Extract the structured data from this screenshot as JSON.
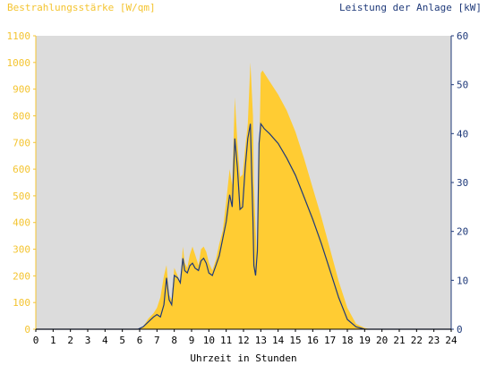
{
  "chart_data": {
    "type": "area",
    "x_label": "Uhrzeit in Stunden",
    "left_axis": {
      "label": "Bestrahlungsstärke [W/qm]",
      "range": [
        0,
        1100
      ],
      "ticks": [
        0,
        100,
        200,
        300,
        400,
        500,
        600,
        700,
        800,
        900,
        1000,
        1100
      ],
      "color": "#f4c430"
    },
    "right_axis": {
      "label": "Leistung der Anlage [kW]",
      "range": [
        0,
        60
      ],
      "ticks": [
        0,
        10,
        20,
        30,
        40,
        50,
        60
      ],
      "color": "#1f3a7a"
    },
    "x_range": [
      0,
      24
    ],
    "x_ticks": [
      0,
      1,
      2,
      3,
      4,
      5,
      6,
      7,
      8,
      9,
      10,
      11,
      12,
      13,
      14,
      15,
      16,
      17,
      18,
      19,
      20,
      21,
      22,
      23,
      24
    ],
    "plot_background": "#dcdcdc",
    "series": [
      {
        "name": "Bestrahlungsstärke",
        "axis": "left",
        "style": "filled-area",
        "color": "#ffcc33",
        "x": [
          0,
          5.9,
          6.2,
          6.5,
          6.8,
          7.0,
          7.2,
          7.4,
          7.55,
          7.7,
          7.85,
          8.0,
          8.2,
          8.35,
          8.5,
          8.6,
          8.75,
          8.9,
          9.05,
          9.2,
          9.4,
          9.55,
          9.7,
          9.85,
          10.0,
          10.2,
          10.4,
          10.6,
          10.8,
          11.0,
          11.2,
          11.35,
          11.5,
          11.65,
          11.8,
          11.95,
          12.1,
          12.25,
          12.4,
          12.55,
          12.6,
          12.7,
          12.8,
          12.9,
          13.0,
          13.1,
          13.2,
          13.5,
          14.0,
          14.5,
          15.0,
          15.5,
          16.0,
          16.5,
          17.0,
          17.5,
          18.0,
          18.5,
          19.0,
          19.3,
          19.6,
          20.0,
          24
        ],
        "y": [
          0,
          0,
          10,
          40,
          60,
          80,
          120,
          200,
          240,
          130,
          110,
          230,
          200,
          170,
          310,
          250,
          230,
          280,
          310,
          280,
          240,
          300,
          310,
          290,
          250,
          220,
          260,
          320,
          370,
          480,
          600,
          540,
          870,
          700,
          570,
          580,
          680,
          770,
          1000,
          800,
          550,
          380,
          240,
          620,
          960,
          970,
          960,
          930,
          880,
          820,
          740,
          640,
          530,
          420,
          300,
          180,
          80,
          20,
          5,
          0,
          0,
          0,
          0
        ]
      },
      {
        "name": "Leistung der Anlage",
        "axis": "right",
        "style": "line",
        "color": "#1f3a7a",
        "x": [
          0,
          5.9,
          6.2,
          6.5,
          6.8,
          7.0,
          7.2,
          7.4,
          7.55,
          7.7,
          7.85,
          8.0,
          8.2,
          8.35,
          8.5,
          8.6,
          8.75,
          8.9,
          9.05,
          9.2,
          9.4,
          9.55,
          9.7,
          9.85,
          10.0,
          10.2,
          10.4,
          10.6,
          10.8,
          11.0,
          11.2,
          11.35,
          11.5,
          11.65,
          11.8,
          11.95,
          12.1,
          12.25,
          12.4,
          12.55,
          12.6,
          12.7,
          12.8,
          12.9,
          13.0,
          13.1,
          13.2,
          13.5,
          14.0,
          14.5,
          15.0,
          15.5,
          16.0,
          16.5,
          17.0,
          17.5,
          18.0,
          18.5,
          19.0,
          19.3,
          19.6,
          20.0,
          24
        ],
        "y": [
          0,
          0,
          0.5,
          1.5,
          2.5,
          3,
          2.5,
          5,
          10.5,
          6,
          5,
          11,
          10.5,
          9.5,
          14.5,
          12,
          11.5,
          13,
          13.5,
          12.5,
          12,
          14,
          14.5,
          13.5,
          11.5,
          11,
          13,
          15,
          18.5,
          22,
          27.5,
          25,
          39,
          33,
          24.5,
          25,
          33,
          39,
          42,
          22,
          13,
          11,
          16,
          38,
          42,
          41.5,
          41,
          40,
          38,
          35,
          31.5,
          27,
          22.5,
          17.5,
          12,
          6.5,
          2,
          0.5,
          0,
          0,
          0,
          0,
          0
        ]
      }
    ]
  }
}
